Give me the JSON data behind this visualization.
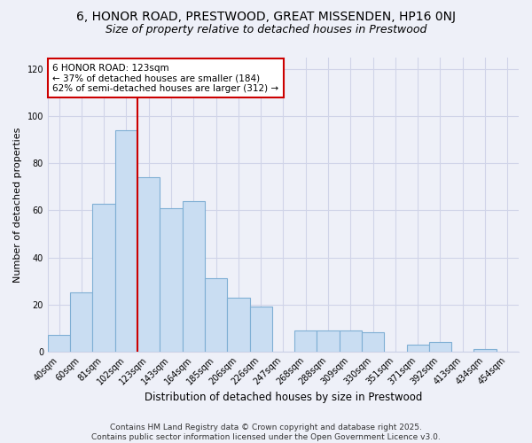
{
  "title": "6, HONOR ROAD, PRESTWOOD, GREAT MISSENDEN, HP16 0NJ",
  "subtitle": "Size of property relative to detached houses in Prestwood",
  "xlabel": "Distribution of detached houses by size in Prestwood",
  "ylabel": "Number of detached properties",
  "bar_labels": [
    "40sqm",
    "60sqm",
    "81sqm",
    "102sqm",
    "123sqm",
    "143sqm",
    "164sqm",
    "185sqm",
    "206sqm",
    "226sqm",
    "247sqm",
    "268sqm",
    "288sqm",
    "309sqm",
    "330sqm",
    "351sqm",
    "371sqm",
    "392sqm",
    "413sqm",
    "434sqm",
    "454sqm"
  ],
  "bar_values": [
    7,
    25,
    63,
    94,
    74,
    61,
    64,
    31,
    23,
    19,
    0,
    9,
    9,
    9,
    8,
    0,
    3,
    4,
    0,
    1,
    0
  ],
  "bar_color": "#c9ddf2",
  "bar_edge_color": "#7fafd4",
  "annotation_box_text": "6 HONOR ROAD: 123sqm\n← 37% of detached houses are smaller (184)\n62% of semi-detached houses are larger (312) →",
  "annotation_box_color": "white",
  "annotation_box_edge_color": "#cc0000",
  "vline_color": "#cc0000",
  "ylim": [
    0,
    125
  ],
  "yticks": [
    0,
    20,
    40,
    60,
    80,
    100,
    120
  ],
  "background_color": "#eef0f8",
  "grid_color": "#d0d4e8",
  "footer_line1": "Contains HM Land Registry data © Crown copyright and database right 2025.",
  "footer_line2": "Contains public sector information licensed under the Open Government Licence v3.0.",
  "title_fontsize": 10,
  "subtitle_fontsize": 9,
  "xlabel_fontsize": 8.5,
  "ylabel_fontsize": 8,
  "tick_fontsize": 7,
  "annot_fontsize": 7.5,
  "footer_fontsize": 6.5,
  "vline_x": 3.5
}
